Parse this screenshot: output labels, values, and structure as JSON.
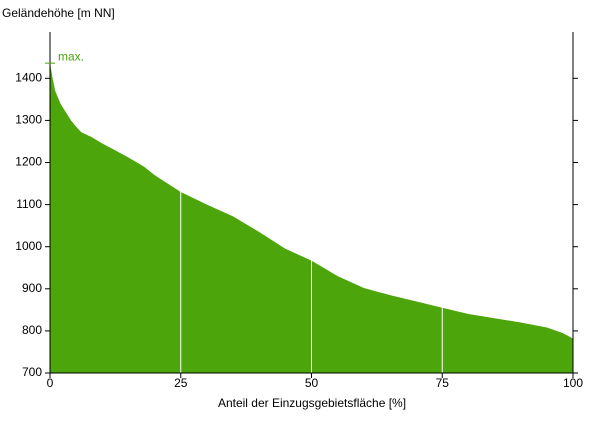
{
  "chart_data": {
    "type": "area",
    "y_label": "Geländehöhe [m NN]",
    "x_label": "Anteil der Einzugsgebietsfläche [%]",
    "annotation": "max.",
    "annotation_value": 1436,
    "color": "#4ba50b",
    "x": [
      0,
      0.5,
      1,
      2,
      3,
      4,
      5,
      6,
      8,
      10,
      12,
      15,
      18,
      20,
      25,
      30,
      35,
      40,
      45,
      50,
      55,
      60,
      65,
      70,
      75,
      80,
      85,
      90,
      95,
      98,
      100
    ],
    "values": [
      1436,
      1400,
      1370,
      1340,
      1320,
      1300,
      1285,
      1272,
      1260,
      1245,
      1232,
      1212,
      1190,
      1170,
      1130,
      1100,
      1072,
      1035,
      995,
      967,
      930,
      902,
      885,
      870,
      855,
      840,
      830,
      820,
      808,
      795,
      782
    ],
    "xlim": [
      0,
      100
    ],
    "xticks": [
      0,
      25,
      50,
      75,
      100
    ],
    "ylim": [
      700,
      1510
    ],
    "yticks": [
      700,
      800,
      900,
      1000,
      1100,
      1200,
      1300,
      1400
    ],
    "grid": true
  }
}
